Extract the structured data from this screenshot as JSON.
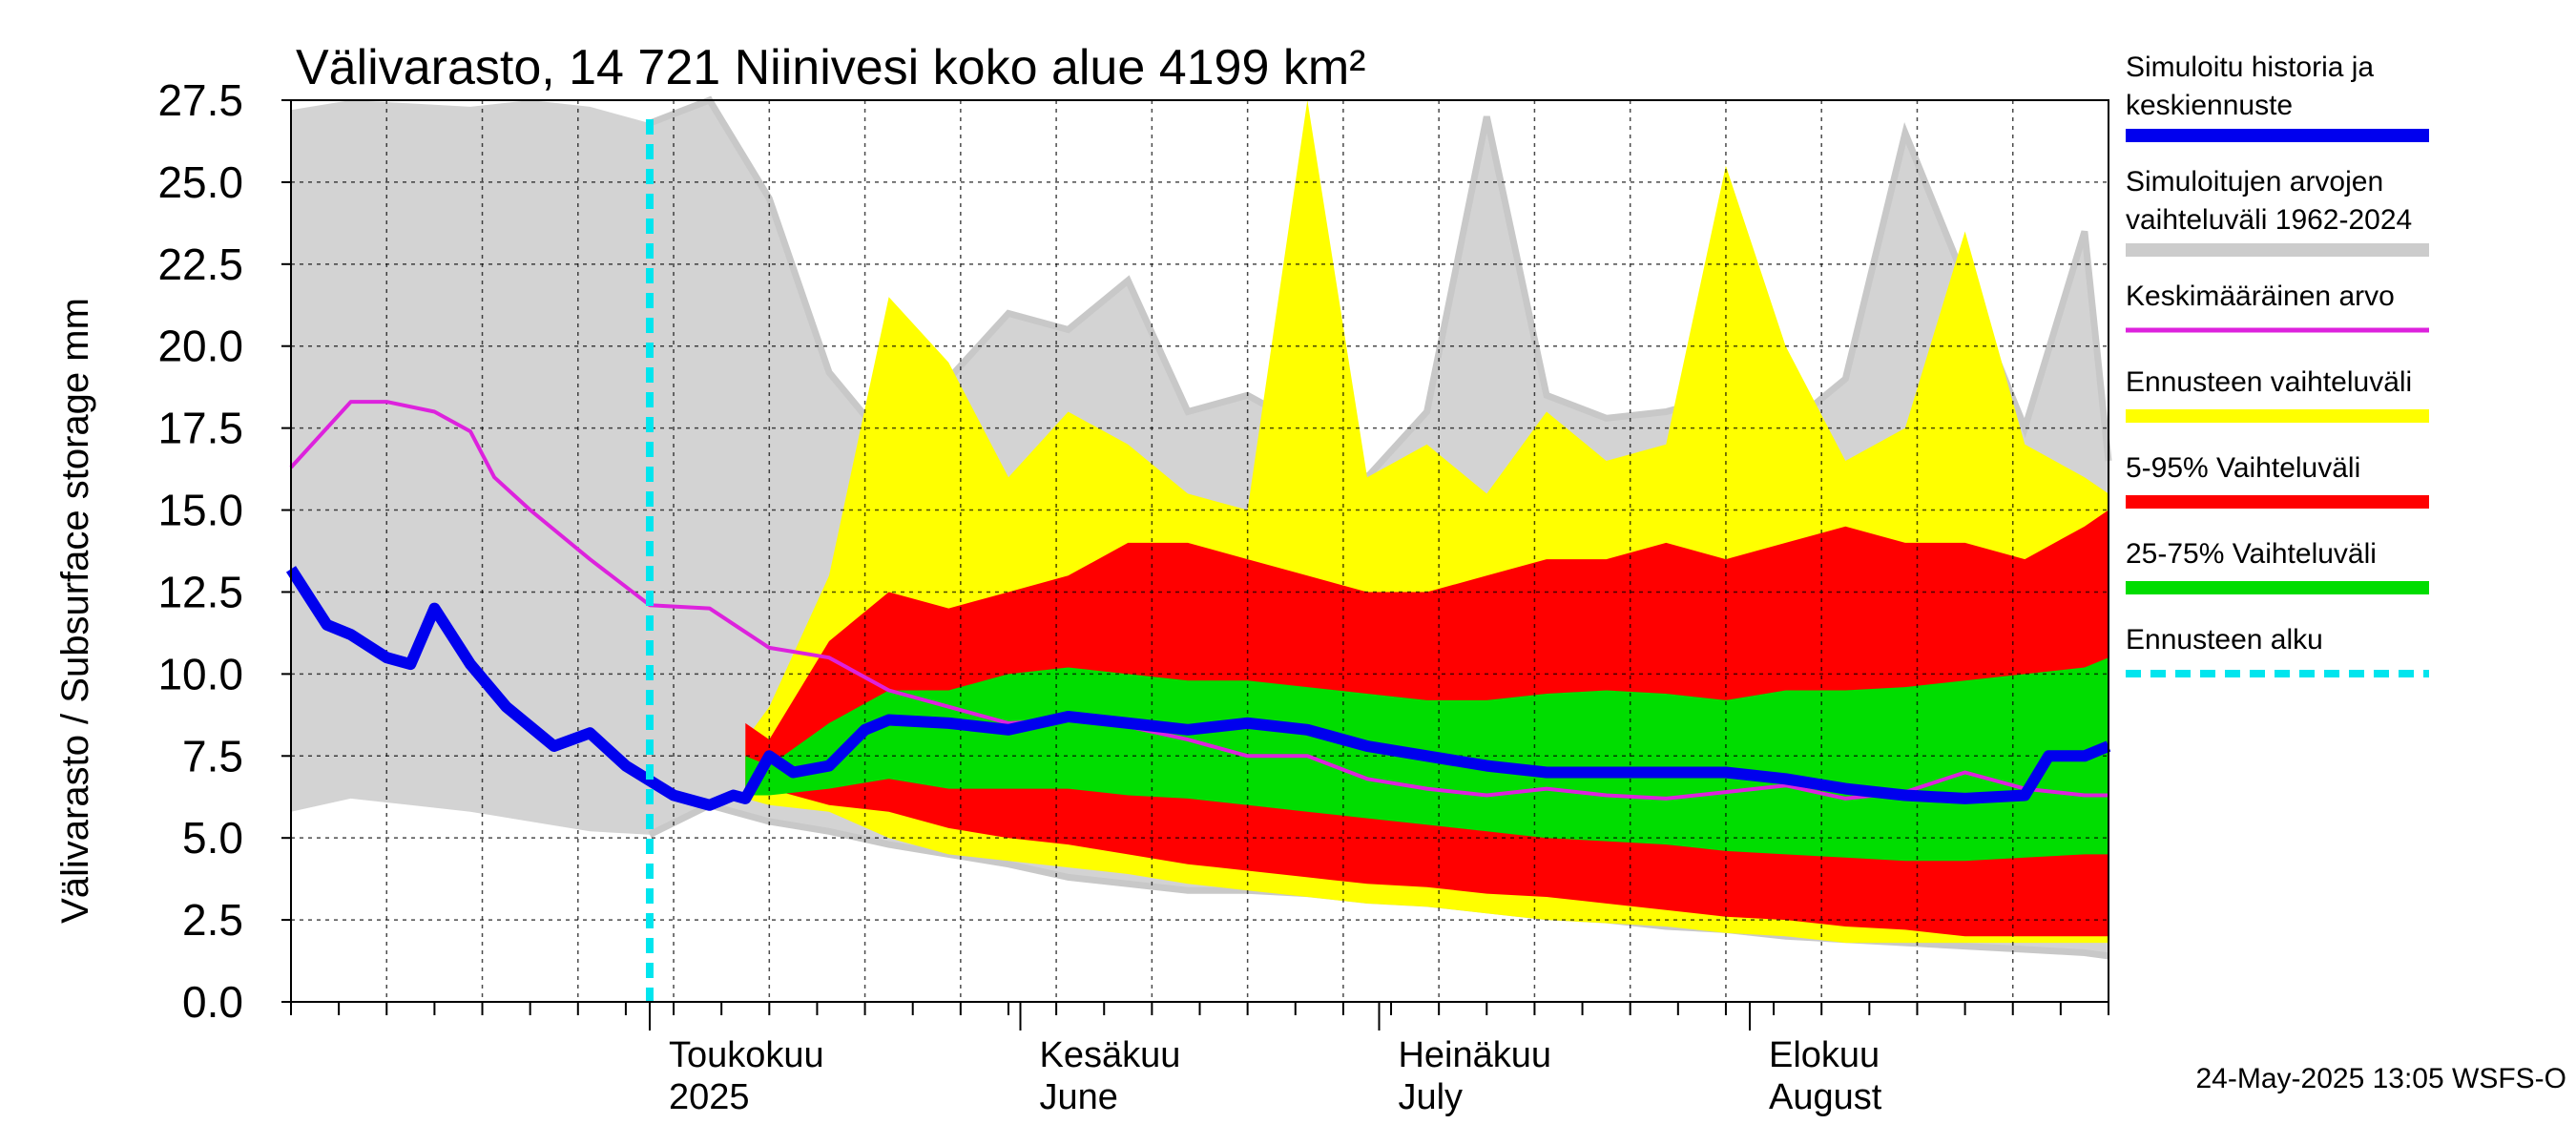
{
  "chart_data": {
    "type": "area",
    "title": "Välivarasto, 14 721 Niinivesi koko alue 4199 km²",
    "ylabel": "Välivarasto / Subsurface storage  mm",
    "ylim": [
      0,
      27.5
    ],
    "yticks": [
      "0.0",
      "2.5",
      "5.0",
      "7.5",
      "10.0",
      "12.5",
      "15.0",
      "17.5",
      "20.0",
      "22.5",
      "25.0",
      "27.5"
    ],
    "x_range": [
      "2025-04-01",
      "2025-08-31"
    ],
    "month_labels": [
      {
        "date": "2025-05-01",
        "line1": "Toukokuu",
        "line2": "2025"
      },
      {
        "date": "2025-06-01",
        "line1": "Kesäkuu",
        "line2": "June"
      },
      {
        "date": "2025-07-01",
        "line1": "Heinäkuu",
        "line2": "July"
      },
      {
        "date": "2025-08-01",
        "line1": "Elokuu",
        "line2": "August"
      }
    ],
    "forecast_start": "2025-05-01",
    "grid": true,
    "legend_position": "right",
    "legend": [
      {
        "label": "Simuloitu historia ja",
        "label2": "keskiennuste",
        "color": "#0000ee",
        "style": "thick"
      },
      {
        "label": "Simuloitujen arvojen",
        "label2": "vaihteluväli 1962-2024",
        "color": "#cccccc",
        "style": "thick"
      },
      {
        "label": "Keskimääräinen arvo",
        "color": "#dd22dd",
        "style": "thin"
      },
      {
        "label": "Ennusteen vaihteluväli",
        "color": "#ffff00",
        "style": "thick"
      },
      {
        "label": "5-95% Vaihteluväli",
        "color": "#ff0000",
        "style": "thick"
      },
      {
        "label": "25-75% Vaihteluväli",
        "color": "#00dd00",
        "style": "thick"
      },
      {
        "label": "Ennusteen alku",
        "color": "#00e5ee",
        "style": "dashed"
      }
    ],
    "series": [
      {
        "name": "Simuloitujen arvojen vaihteluväli 1962-2024",
        "key": "hist_range",
        "x": [
          0,
          5,
          10,
          15,
          20,
          25,
          30,
          35,
          40,
          45,
          50,
          55,
          60,
          65,
          70,
          75,
          80,
          85,
          90,
          95,
          100,
          105,
          110,
          115,
          120,
          125,
          130,
          135,
          140,
          145,
          150,
          152
        ],
        "upper": [
          27.2,
          27.5,
          27.4,
          27.3,
          27.5,
          27.3,
          26.8,
          27.5,
          24.5,
          19.2,
          17.0,
          19.0,
          21.0,
          20.5,
          22.0,
          18.0,
          18.5,
          17.5,
          16.0,
          18.0,
          27.0,
          18.5,
          17.8,
          18.0,
          18.5,
          17.5,
          19.0,
          26.5,
          22.0,
          17.5,
          23.5,
          16.5
        ],
        "lower": [
          5.8,
          6.2,
          6.0,
          5.8,
          5.5,
          5.2,
          5.1,
          6.0,
          5.5,
          5.2,
          4.8,
          4.5,
          4.2,
          3.8,
          3.6,
          3.4,
          3.4,
          3.3,
          3.1,
          3.0,
          2.8,
          2.6,
          2.5,
          2.3,
          2.2,
          2.0,
          1.9,
          1.8,
          1.7,
          1.6,
          1.5,
          1.4
        ]
      },
      {
        "name": "Ennusteen vaihteluväli",
        "key": "forecast_range",
        "x": [
          38,
          40,
          45,
          50,
          55,
          60,
          65,
          70,
          75,
          80,
          85,
          90,
          95,
          100,
          105,
          110,
          115,
          120,
          125,
          130,
          135,
          140,
          145,
          150,
          152
        ],
        "upper": [
          8.0,
          9.0,
          13.0,
          21.5,
          19.5,
          16.0,
          18.0,
          17.0,
          15.5,
          15.0,
          27.5,
          16.0,
          17.0,
          15.5,
          18.0,
          16.5,
          17.0,
          25.5,
          20.0,
          16.5,
          17.5,
          23.5,
          17.0,
          16.0,
          15.5
        ],
        "lower": [
          6.2,
          6.0,
          5.8,
          5.0,
          4.5,
          4.3,
          4.1,
          3.9,
          3.6,
          3.4,
          3.2,
          3.0,
          2.9,
          2.7,
          2.5,
          2.4,
          2.3,
          2.1,
          2.0,
          1.8,
          1.8,
          1.8,
          1.8,
          1.8,
          1.8
        ]
      },
      {
        "name": "5-95% Vaihteluväli",
        "key": "p5_95",
        "x": [
          38,
          40,
          45,
          50,
          55,
          60,
          65,
          70,
          75,
          80,
          85,
          90,
          95,
          100,
          105,
          110,
          115,
          120,
          125,
          130,
          135,
          140,
          145,
          150,
          152
        ],
        "upper": [
          8.5,
          8.0,
          11.0,
          12.5,
          12.0,
          12.5,
          13.0,
          14.0,
          14.0,
          13.5,
          13.0,
          12.5,
          12.5,
          13.0,
          13.5,
          13.5,
          14.0,
          13.5,
          14.0,
          14.5,
          14.0,
          14.0,
          13.5,
          14.5,
          15.0
        ],
        "lower": [
          6.5,
          6.5,
          6.0,
          5.8,
          5.3,
          5.0,
          4.8,
          4.5,
          4.2,
          4.0,
          3.8,
          3.6,
          3.5,
          3.3,
          3.2,
          3.0,
          2.8,
          2.6,
          2.5,
          2.3,
          2.2,
          2.0,
          2.0,
          2.0,
          2.0
        ]
      },
      {
        "name": "25-75% Vaihteluväli",
        "key": "p25_75",
        "x": [
          38,
          40,
          45,
          50,
          55,
          60,
          65,
          70,
          75,
          80,
          85,
          90,
          95,
          100,
          105,
          110,
          115,
          120,
          125,
          130,
          135,
          140,
          145,
          150,
          152
        ],
        "upper": [
          7.5,
          7.2,
          8.5,
          9.5,
          9.5,
          10.0,
          10.2,
          10.0,
          9.8,
          9.8,
          9.6,
          9.4,
          9.2,
          9.2,
          9.4,
          9.5,
          9.4,
          9.2,
          9.5,
          9.5,
          9.6,
          9.8,
          10.0,
          10.2,
          10.5
        ],
        "lower": [
          6.3,
          6.3,
          6.5,
          6.8,
          6.5,
          6.5,
          6.5,
          6.3,
          6.2,
          6.0,
          5.8,
          5.6,
          5.4,
          5.2,
          5.0,
          4.9,
          4.8,
          4.6,
          4.5,
          4.4,
          4.3,
          4.3,
          4.4,
          4.5,
          4.5
        ]
      },
      {
        "name": "Keskimääräinen arvo",
        "key": "mean",
        "x": [
          0,
          3,
          5,
          8,
          12,
          15,
          17,
          20,
          25,
          30,
          35,
          40,
          45,
          50,
          55,
          60,
          65,
          70,
          75,
          80,
          85,
          90,
          95,
          100,
          105,
          110,
          115,
          120,
          125,
          130,
          135,
          140,
          145,
          150,
          152
        ],
        "y": [
          16.3,
          17.5,
          18.3,
          18.3,
          18.0,
          17.4,
          16.0,
          15.0,
          13.5,
          12.1,
          12.0,
          10.8,
          10.5,
          9.5,
          9.0,
          8.5,
          8.6,
          8.4,
          8.0,
          7.5,
          7.5,
          6.8,
          6.5,
          6.3,
          6.5,
          6.3,
          6.2,
          6.4,
          6.6,
          6.2,
          6.4,
          7.0,
          6.5,
          6.3,
          6.3
        ]
      },
      {
        "name": "Simuloitu historia ja keskiennuste",
        "key": "main",
        "x": [
          0,
          3,
          5,
          8,
          10,
          12,
          15,
          18,
          22,
          25,
          28,
          32,
          35,
          37,
          38,
          40,
          42,
          45,
          48,
          50,
          55,
          60,
          65,
          70,
          75,
          80,
          85,
          90,
          95,
          100,
          105,
          110,
          115,
          120,
          125,
          130,
          135,
          140,
          145,
          147,
          150,
          152
        ],
        "y": [
          13.2,
          11.5,
          11.2,
          10.5,
          10.3,
          12.0,
          10.3,
          9.0,
          7.8,
          8.2,
          7.2,
          6.3,
          6.0,
          6.3,
          6.2,
          7.5,
          7.0,
          7.2,
          8.3,
          8.6,
          8.5,
          8.3,
          8.7,
          8.5,
          8.3,
          8.5,
          8.3,
          7.8,
          7.5,
          7.2,
          7.0,
          7.0,
          7.0,
          7.0,
          6.8,
          6.5,
          6.3,
          6.2,
          6.3,
          7.5,
          7.5,
          7.8
        ]
      }
    ],
    "x_units": "days since 2025-04-01"
  },
  "footer": {
    "timestamp": "24-May-2025 13:05 WSFS-O"
  }
}
